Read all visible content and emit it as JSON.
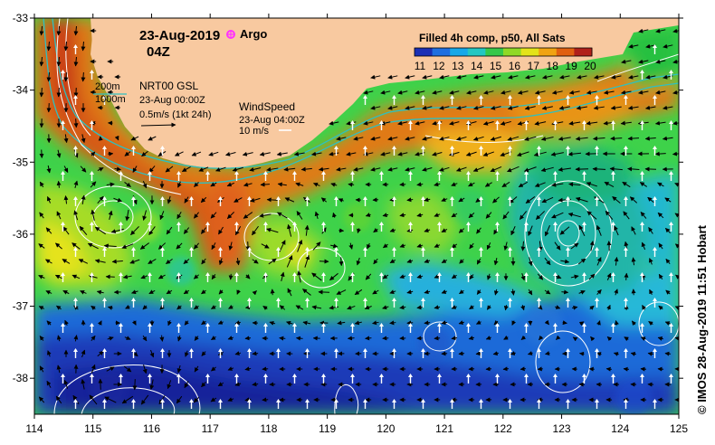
{
  "map": {
    "date_label": "23-Aug-2019",
    "time_label": "04Z",
    "argo_label": "Argo",
    "product_title": "Filled 4h comp, p50, All Sats",
    "sst_scale": {
      "min": 11,
      "max": 20,
      "tick_labels": [
        "11",
        "12",
        "13",
        "14",
        "15",
        "16",
        "17",
        "18",
        "19",
        "20"
      ],
      "colors": [
        "#1a2fb5",
        "#1f6fe0",
        "#16a8e8",
        "#23c7c2",
        "#35c84a",
        "#8fd926",
        "#e3e31a",
        "#f0a312",
        "#e06010",
        "#b0201a"
      ]
    },
    "contour_legend": {
      "depth_200": "200m",
      "depth_1000": "1000m"
    },
    "current_legend": {
      "product": "NRT00 GSL",
      "timestamp": "23-Aug 00:00Z",
      "scale": "0.5m/s (1kt 24h)"
    },
    "wind_legend": {
      "title": "WindSpeed",
      "timestamp": "23-Aug 04:00Z",
      "scale": "10 m/s"
    },
    "axes": {
      "lon_range": [
        114,
        125
      ],
      "lat_range": [
        -38.5,
        -33
      ],
      "x_tick_labels": [
        "114",
        "115",
        "116",
        "117",
        "118",
        "119",
        "120",
        "121",
        "122",
        "123",
        "124",
        "125"
      ],
      "y_tick_labels": [
        "-33",
        "-34",
        "-35",
        "-36",
        "-37",
        "-38"
      ]
    },
    "colors": {
      "land": "#f8c9a0",
      "contour": "#2ec0c0",
      "argo": "#ff33ff"
    },
    "credit": "© IMOS 28-Aug-2019 11:51 Hobart"
  }
}
